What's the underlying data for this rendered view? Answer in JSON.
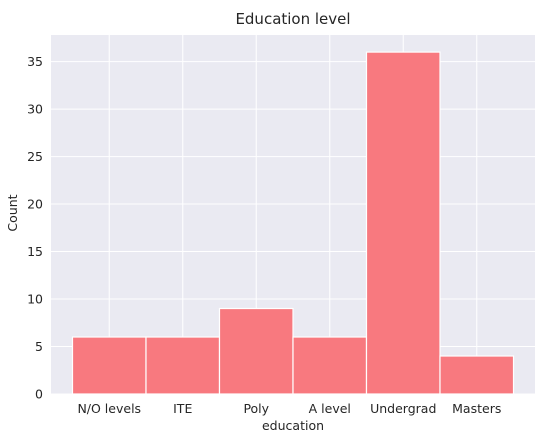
{
  "chart_data": {
    "type": "bar",
    "title": "Education level",
    "xlabel": "education",
    "ylabel": "Count",
    "categories": [
      "N/O levels",
      "ITE",
      "Poly",
      "A level",
      "Undergrad",
      "Masters"
    ],
    "values": [
      6,
      6,
      9,
      6,
      36,
      4
    ],
    "ylim": [
      0,
      37.8
    ],
    "yticks": [
      0,
      5,
      10,
      15,
      20,
      25,
      30,
      35
    ],
    "grid": true,
    "bar_color": "#f8757b",
    "background_color": "#eaeaf2",
    "grid_color": "#ffffff"
  }
}
